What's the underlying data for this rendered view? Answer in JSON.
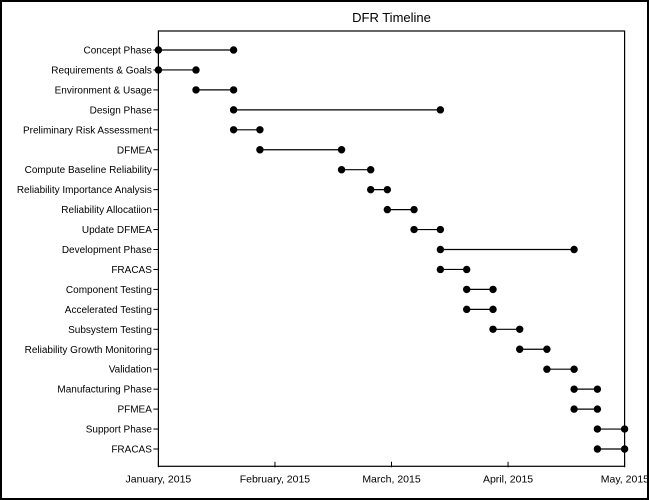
{
  "chart_data": {
    "type": "gantt",
    "title": "DFR Timeline",
    "x_axis": {
      "tick_labels": [
        "January, 2015",
        "February, 2015",
        "March, 2015",
        "April, 2015",
        "May, 2015"
      ],
      "days_in_month": [
        31,
        28,
        31,
        30,
        31
      ],
      "range": [
        "2015-01-01",
        "2015-05-01"
      ]
    },
    "legend": "none",
    "grid": "off",
    "marker": "filled-circle",
    "colors": {
      "foreground": "#000000",
      "background": "#ffffff"
    },
    "tasks": [
      {
        "label": "Concept Phase",
        "start": "2015-01-01",
        "end": "2015-01-21"
      },
      {
        "label": "Requirements & Goals",
        "start": "2015-01-01",
        "end": "2015-01-11"
      },
      {
        "label": "Environment & Usage",
        "start": "2015-01-11",
        "end": "2015-01-21"
      },
      {
        "label": "Design Phase",
        "start": "2015-01-21",
        "end": "2015-03-14"
      },
      {
        "label": "Preliminary Risk Assessment",
        "start": "2015-01-21",
        "end": "2015-01-28"
      },
      {
        "label": "DFMEA",
        "start": "2015-01-28",
        "end": "2015-02-17"
      },
      {
        "label": "Compute Baseline Reliability",
        "start": "2015-02-17",
        "end": "2015-02-24"
      },
      {
        "label": "Reliability Importance Analysis",
        "start": "2015-02-24",
        "end": "2015-02-28"
      },
      {
        "label": "Reliability Allocatiion",
        "start": "2015-02-28",
        "end": "2015-03-07"
      },
      {
        "label": "Update DFMEA",
        "start": "2015-03-07",
        "end": "2015-03-14"
      },
      {
        "label": "Development Phase",
        "start": "2015-03-14",
        "end": "2015-04-18"
      },
      {
        "label": "FRACAS",
        "start": "2015-03-14",
        "end": "2015-03-21"
      },
      {
        "label": "Component Testing",
        "start": "2015-03-21",
        "end": "2015-03-28"
      },
      {
        "label": "Accelerated Testing",
        "start": "2015-03-21",
        "end": "2015-03-28"
      },
      {
        "label": "Subsystem Testing",
        "start": "2015-03-28",
        "end": "2015-04-04"
      },
      {
        "label": "Reliability Growth Monitoring",
        "start": "2015-04-04",
        "end": "2015-04-11"
      },
      {
        "label": "Validation",
        "start": "2015-04-11",
        "end": "2015-04-18"
      },
      {
        "label": "Manufacturing Phase",
        "start": "2015-04-18",
        "end": "2015-04-24"
      },
      {
        "label": "PFMEA",
        "start": "2015-04-18",
        "end": "2015-04-24"
      },
      {
        "label": "Support Phase",
        "start": "2015-04-24",
        "end": "2015-05-01"
      },
      {
        "label": "FRACAS",
        "start": "2015-04-24",
        "end": "2015-05-01"
      }
    ]
  }
}
